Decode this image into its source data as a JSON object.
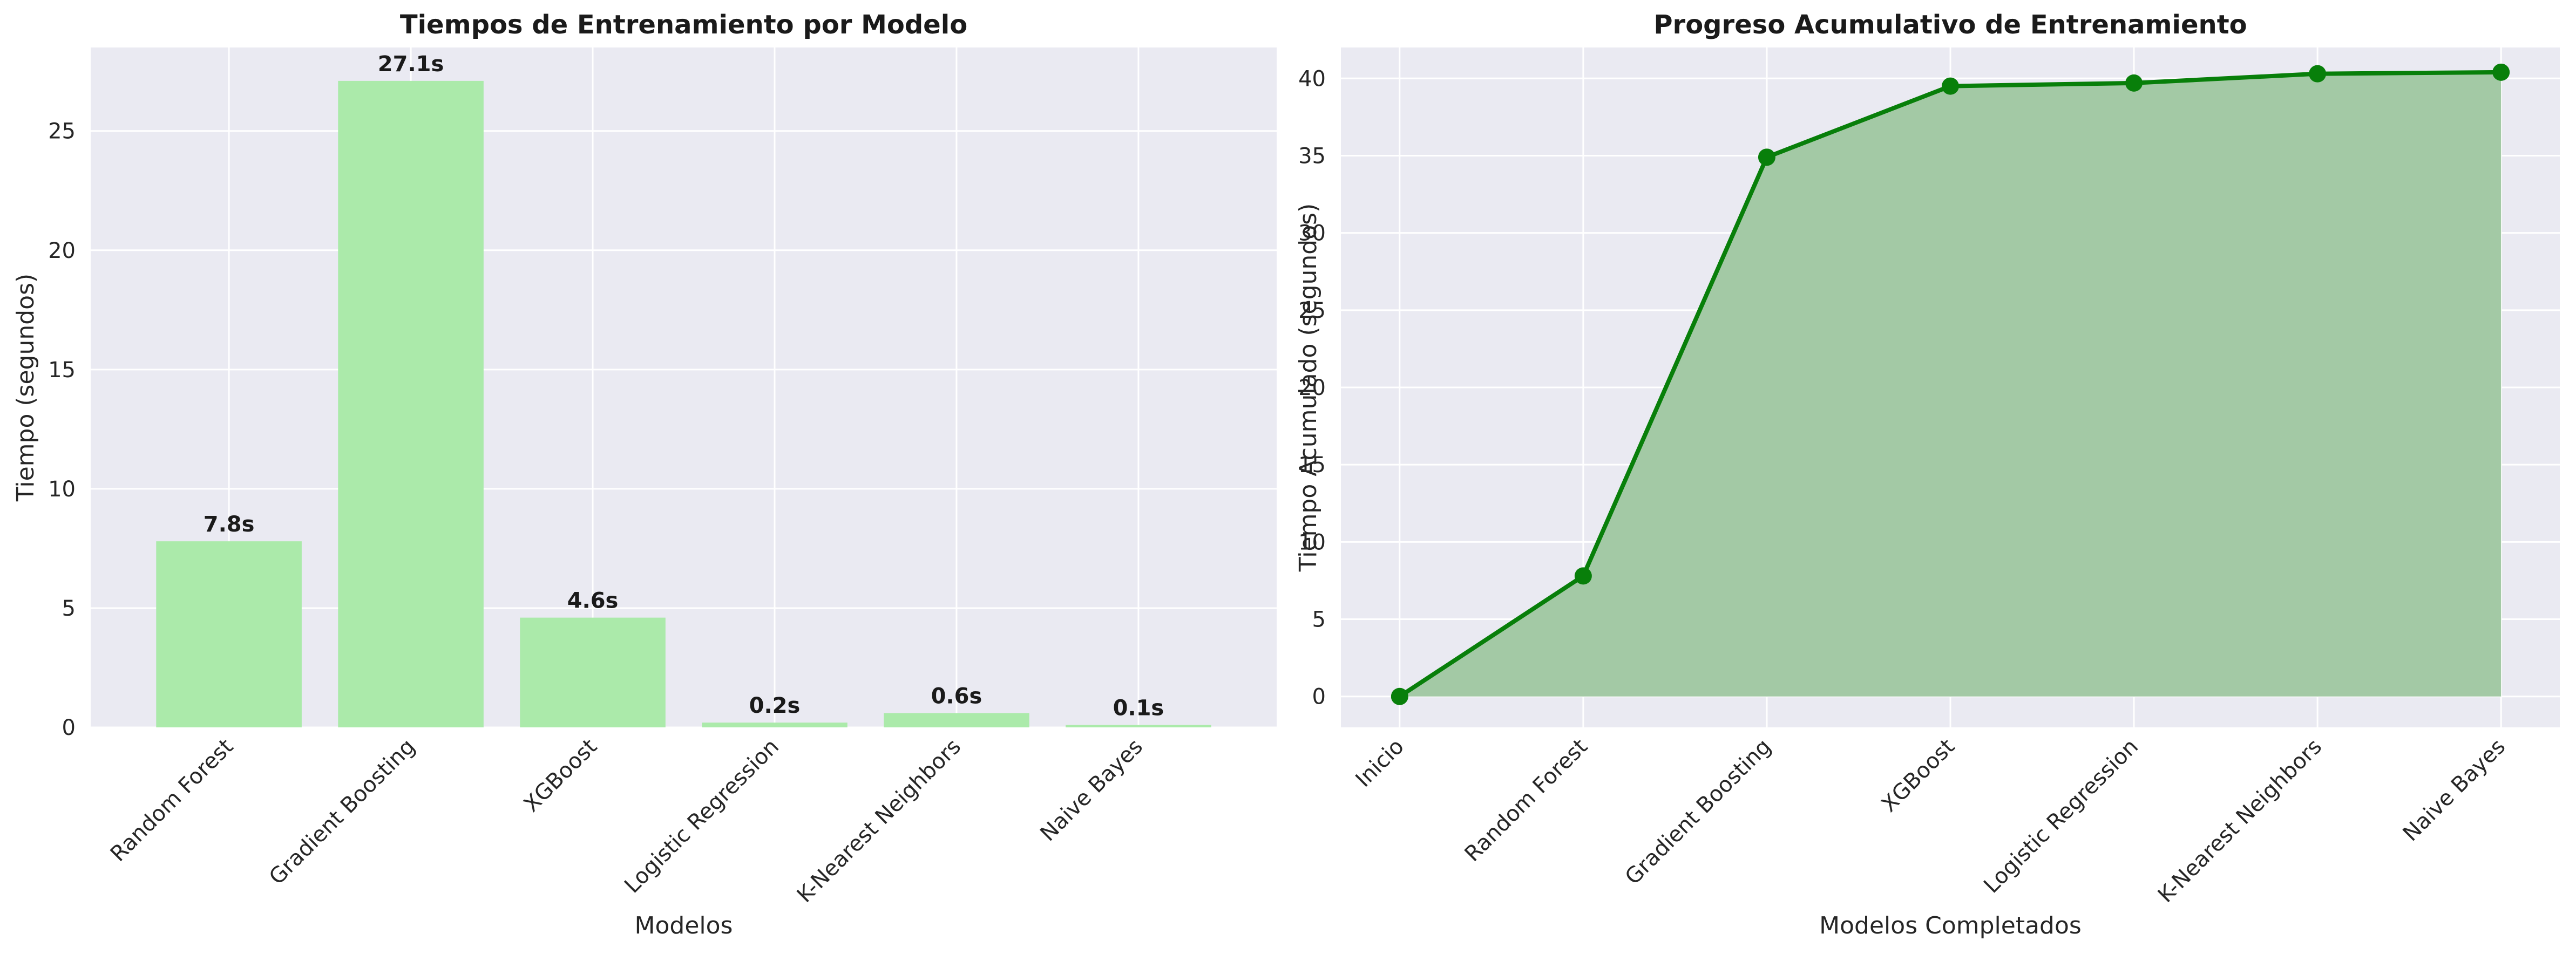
{
  "chart_data": [
    {
      "type": "bar",
      "title": "Tiempos de Entrenamiento por Modelo",
      "xlabel": "Modelos",
      "ylabel": "Tiempo (segundos)",
      "categories": [
        "Random Forest",
        "Gradient Boosting",
        "XGBoost",
        "Logistic Regression",
        "K-Nearest Neighbors",
        "Naive Bayes"
      ],
      "values": [
        7.8,
        27.1,
        4.6,
        0.2,
        0.6,
        0.1
      ],
      "value_labels": [
        "7.8s",
        "27.1s",
        "4.6s",
        "0.2s",
        "0.6s",
        "0.1s"
      ],
      "ylim": [
        0,
        28.5
      ],
      "yticks": [
        0,
        5,
        10,
        15,
        20,
        25
      ],
      "grid": true,
      "colors": {
        "bar": "#abeaaa",
        "background": "#eaeaf2",
        "grid": "#ffffff"
      }
    },
    {
      "type": "area",
      "title": "Progreso Acumulativo de Entrenamiento",
      "xlabel": "Modelos Completados",
      "ylabel": "Tiempo Acumulado (segundos)",
      "categories": [
        "Inicio",
        "Random Forest",
        "Gradient Boosting",
        "XGBoost",
        "Logistic Regression",
        "K-Nearest Neighbors",
        "Naive Bayes"
      ],
      "values": [
        0,
        7.8,
        34.9,
        39.5,
        39.7,
        40.3,
        40.4
      ],
      "ylim": [
        -2,
        42
      ],
      "yticks": [
        0,
        5,
        10,
        15,
        20,
        25,
        30,
        35,
        40
      ],
      "grid": true,
      "colors": {
        "line": "#087f0a",
        "fill": "#a3c9a5",
        "background": "#eaeaf2",
        "grid": "#ffffff"
      }
    }
  ]
}
